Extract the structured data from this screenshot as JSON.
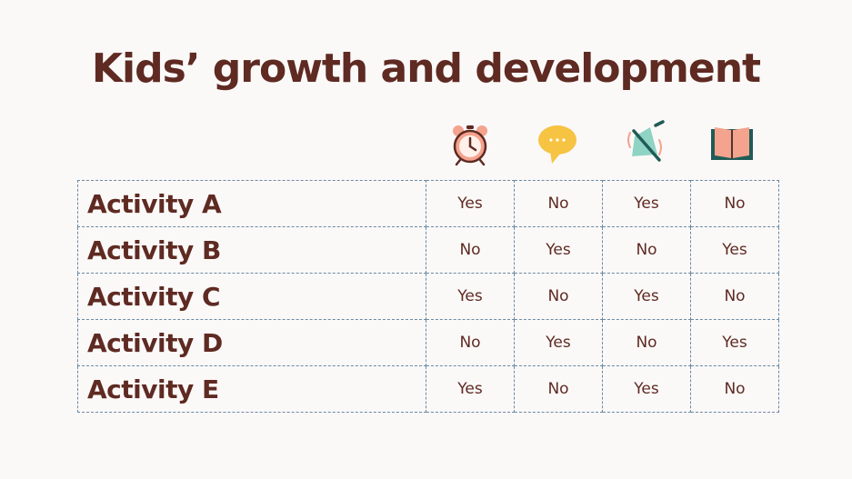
{
  "title": "Kids’ growth and development",
  "icons": [
    "alarm-clock-icon",
    "speech-bubble-icon",
    "muted-bell-icon",
    "open-book-icon"
  ],
  "rows": [
    {
      "label": "Activity A",
      "values": [
        "Yes",
        "No",
        "Yes",
        "No"
      ]
    },
    {
      "label": "Activity B",
      "values": [
        "No",
        "Yes",
        "No",
        "Yes"
      ]
    },
    {
      "label": "Activity C",
      "values": [
        "Yes",
        "No",
        "Yes",
        "No"
      ]
    },
    {
      "label": "Activity D",
      "values": [
        "No",
        "Yes",
        "No",
        "Yes"
      ]
    },
    {
      "label": "Activity E",
      "values": [
        "Yes",
        "No",
        "Yes",
        "No"
      ]
    }
  ],
  "colors": {
    "text": "#5e2a22",
    "background": "#fbf9f8",
    "border": "#6b8aa3",
    "accent_salmon": "#f4a38e",
    "accent_yellow": "#f6c343",
    "accent_teal": "#1f5c57"
  }
}
